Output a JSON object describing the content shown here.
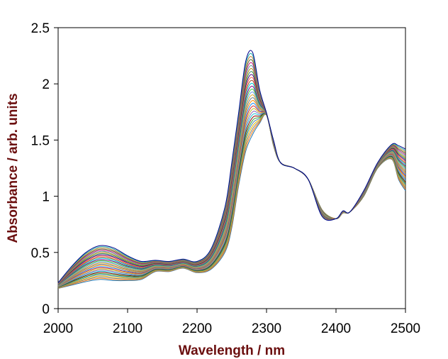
{
  "chart_data": {
    "type": "line",
    "title": "",
    "xlabel": "Wavelength / nm",
    "ylabel": "Absorbance / arb. units",
    "xlim": [
      2000,
      2500
    ],
    "ylim": [
      0,
      2.5
    ],
    "x_ticks": [
      "2000",
      "2100",
      "2200",
      "2300",
      "2400",
      "2500"
    ],
    "y_ticks": [
      "0",
      "0.5",
      "1",
      "1.5",
      "2",
      "2.5"
    ],
    "grid": false,
    "legend": "none",
    "x": [
      2000,
      2020,
      2040,
      2060,
      2080,
      2100,
      2120,
      2140,
      2160,
      2180,
      2200,
      2220,
      2240,
      2250,
      2260,
      2270,
      2280,
      2290,
      2300,
      2310,
      2320,
      2340,
      2360,
      2380,
      2400,
      2410,
      2420,
      2440,
      2460,
      2480,
      2490,
      2500
    ],
    "envelope_low": [
      0.18,
      0.21,
      0.24,
      0.26,
      0.25,
      0.25,
      0.26,
      0.33,
      0.33,
      0.36,
      0.32,
      0.35,
      0.5,
      0.72,
      1.1,
      1.4,
      1.55,
      1.65,
      1.72,
      1.45,
      1.3,
      1.25,
      1.15,
      0.88,
      0.8,
      0.85,
      0.86,
      1.0,
      1.25,
      1.33,
      1.15,
      1.05
    ],
    "envelope_high": [
      0.23,
      0.38,
      0.5,
      0.56,
      0.54,
      0.47,
      0.42,
      0.43,
      0.42,
      0.44,
      0.42,
      0.53,
      0.9,
      1.3,
      1.75,
      2.2,
      2.28,
      1.95,
      1.74,
      1.5,
      1.3,
      1.25,
      1.15,
      0.82,
      0.8,
      0.87,
      0.86,
      1.05,
      1.3,
      1.46,
      1.45,
      1.42
    ],
    "series_count": 30,
    "series_colors": [
      "#1f77b4",
      "#ff7f0e",
      "#7f7f7f",
      "#e6b800",
      "#4682b4",
      "#2ca02c",
      "#8b0000",
      "#17becf",
      "#9467bd",
      "#bcbd22",
      "#d62728",
      "#1e90ff",
      "#ff8c00",
      "#708090",
      "#daa520",
      "#6495ed",
      "#32cd32",
      "#800080",
      "#00ced1",
      "#a0522d",
      "#ff6347",
      "#4b0082",
      "#2e8b57",
      "#b8860b",
      "#5f9ea0",
      "#c71585",
      "#556b2f",
      "#cd853f",
      "#20b2aa",
      "#00008b"
    ]
  }
}
